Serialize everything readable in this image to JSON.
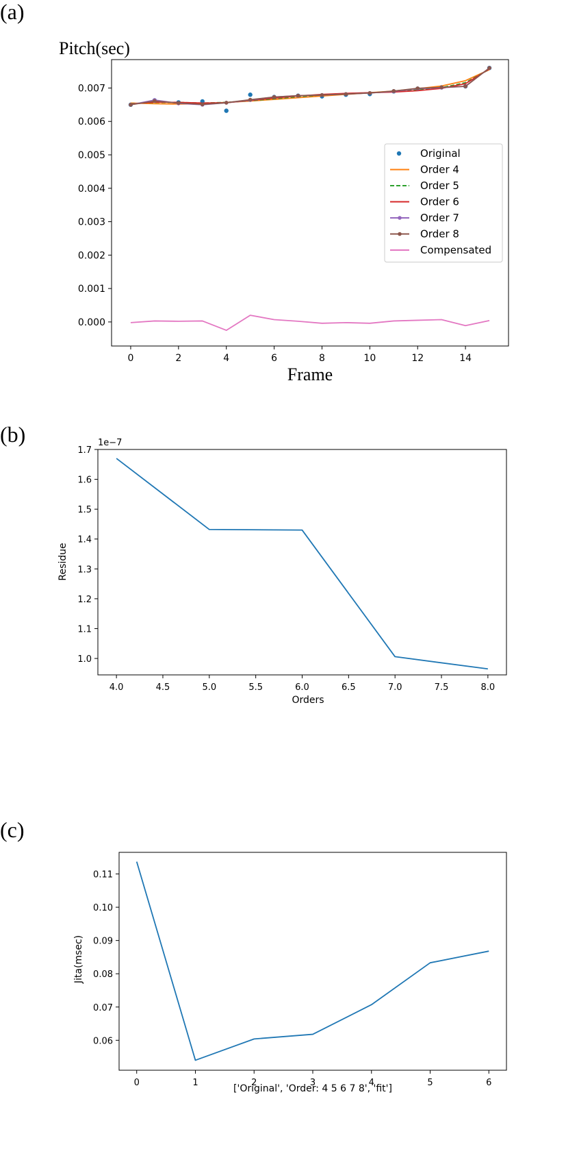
{
  "panels": {
    "a": "(a)",
    "b": "(b)",
    "c": "(c)"
  },
  "chart_data": [
    {
      "type": "line",
      "ylabel": "Pitch(sec)",
      "xlabel": "Frame",
      "xlim": [
        -0.8,
        15.8
      ],
      "ylim": [
        -0.00072,
        0.00785
      ],
      "xticks": [
        0,
        2,
        4,
        6,
        8,
        10,
        12,
        14
      ],
      "yticks": [
        0.0,
        0.001,
        0.002,
        0.003,
        0.004,
        0.005,
        0.006,
        0.007
      ],
      "ytick_labels": [
        "0.000",
        "0.001",
        "0.002",
        "0.003",
        "0.004",
        "0.005",
        "0.006",
        "0.007"
      ],
      "legend_position": "center-right",
      "x": [
        0,
        1,
        2,
        3,
        4,
        5,
        6,
        7,
        8,
        9,
        10,
        11,
        12,
        13,
        14,
        15
      ],
      "series": [
        {
          "name": "Original",
          "style": "dots",
          "color": "#1f77b4",
          "values": [
            0.0065,
            0.00663,
            0.00657,
            0.0066,
            0.00632,
            0.0068,
            0.00673,
            0.00677,
            0.00675,
            0.0068,
            0.00682,
            0.0069,
            0.00698,
            0.00702,
            0.00705,
            0.0076
          ]
        },
        {
          "name": "Order 4",
          "style": "solid",
          "color": "#ff7f0e",
          "values": [
            0.00655,
            0.00653,
            0.00652,
            0.00653,
            0.00657,
            0.00661,
            0.00666,
            0.00671,
            0.00676,
            0.00681,
            0.00686,
            0.00691,
            0.00698,
            0.00706,
            0.00722,
            0.00755
          ]
        },
        {
          "name": "Order 5",
          "style": "dashed",
          "color": "#2ca02c",
          "values": [
            0.00653,
            0.00657,
            0.00657,
            0.00655,
            0.00657,
            0.00662,
            0.00668,
            0.00674,
            0.00679,
            0.00683,
            0.00686,
            0.00689,
            0.00694,
            0.00701,
            0.00716,
            0.00756
          ]
        },
        {
          "name": "Order 6",
          "style": "solid",
          "color": "#d62728",
          "values": [
            0.00652,
            0.00658,
            0.00657,
            0.00655,
            0.00656,
            0.00663,
            0.0067,
            0.00676,
            0.00681,
            0.00684,
            0.00686,
            0.00688,
            0.00692,
            0.00699,
            0.00713,
            0.00757
          ]
        },
        {
          "name": " Order 7",
          "style": "line-marker",
          "color": "#9467bd",
          "values": [
            0.0065,
            0.00664,
            0.00654,
            0.0065,
            0.00656,
            0.00664,
            0.00673,
            0.00677,
            0.00679,
            0.00682,
            0.00685,
            0.0069,
            0.00698,
            0.00701,
            0.00705,
            0.0076
          ]
        },
        {
          "name": " Order 8",
          "style": "line-marker",
          "color": "#8c564b",
          "values": [
            0.0065,
            0.00661,
            0.00655,
            0.00651,
            0.00656,
            0.00665,
            0.00673,
            0.00677,
            0.00679,
            0.00682,
            0.00685,
            0.00691,
            0.00699,
            0.00702,
            0.00705,
            0.0076
          ]
        },
        {
          "name": "Compensated",
          "style": "solid",
          "color": "#e377c2",
          "values": [
            -2e-05,
            3e-05,
            2e-05,
            3e-05,
            -0.00025,
            0.0002,
            7e-05,
            2e-05,
            -4e-05,
            -2e-05,
            -4e-05,
            3e-05,
            5e-05,
            7e-05,
            -0.00011,
            4e-05
          ]
        }
      ]
    },
    {
      "type": "line",
      "ylabel": "Residue",
      "xlabel": "Orders",
      "scale_label": "1e−7",
      "xlim": [
        3.8,
        8.2
      ],
      "ylim": [
        0.945,
        1.7
      ],
      "xticks": [
        4.0,
        4.5,
        5.0,
        5.5,
        6.0,
        6.5,
        7.0,
        7.5,
        8.0
      ],
      "xtick_labels": [
        "4.0",
        "4.5",
        "5.0",
        "5.5",
        "6.0",
        "6.5",
        "7.0",
        "7.5",
        "8.0"
      ],
      "yticks": [
        1.0,
        1.1,
        1.2,
        1.3,
        1.4,
        1.5,
        1.6,
        1.7
      ],
      "ytick_labels": [
        "1.0",
        "1.1",
        "1.2",
        "1.3",
        "1.4",
        "1.5",
        "1.6",
        "1.7"
      ],
      "x": [
        4,
        5,
        6,
        7,
        8
      ],
      "series": [
        {
          "color": "#1f77b4",
          "values": [
            1.67,
            1.432,
            1.43,
            1.006,
            0.965
          ]
        }
      ]
    },
    {
      "type": "line",
      "ylabel": "Jita(msec)",
      "xlabel": "['Original', 'Order: 4  5  6  7  8', 'fit']",
      "xlim": [
        -0.3,
        6.3
      ],
      "ylim": [
        0.051,
        0.1165
      ],
      "xticks": [
        0,
        1,
        2,
        3,
        4,
        5,
        6
      ],
      "yticks": [
        0.06,
        0.07,
        0.08,
        0.09,
        0.1,
        0.11
      ],
      "ytick_labels": [
        "0.06",
        "0.07",
        "0.08",
        "0.09",
        "0.10",
        "0.11"
      ],
      "x": [
        0,
        1,
        2,
        3,
        4,
        5,
        6
      ],
      "series": [
        {
          "color": "#1f77b4",
          "values": [
            0.1137,
            0.054,
            0.0604,
            0.0618,
            0.0707,
            0.0833,
            0.0868
          ]
        }
      ]
    }
  ]
}
